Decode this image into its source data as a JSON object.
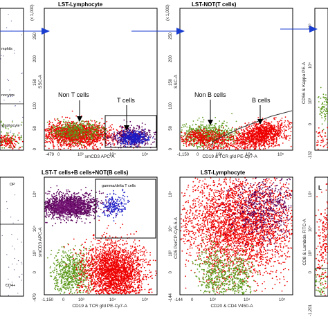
{
  "chart_data": [
    {
      "type": "scatter",
      "title": "",
      "ylabel": "",
      "xlabel": "",
      "annotations": [
        "mphils",
        "nocytes",
        "ymphocyte"
      ]
    },
    {
      "type": "scatter",
      "title": "LST-Lymphocyte",
      "ylabel": "SSC-A",
      "xlabel": "smCD3 APC-A",
      "y_ticks": [
        "(x 1,000)",
        "250",
        "200",
        "150",
        "100",
        "50",
        "0"
      ],
      "x_ticks": [
        "-479",
        "0",
        "10³",
        "10⁴",
        "10⁵"
      ],
      "annotations": [
        "Non T cells",
        "T cells"
      ],
      "series": [
        {
          "name": "Non T cells",
          "color": "#e60000"
        },
        {
          "name": "T cells",
          "color": "#2020d0"
        }
      ]
    },
    {
      "type": "scatter",
      "title": "LST-NOT(T cells)",
      "ylabel": "SSC-A",
      "xlabel": "CD19 & TCR gfd PE-Cy7-A",
      "y_ticks": [
        "(x 1,000)",
        "250",
        "200",
        "150",
        "100",
        "50",
        "0"
      ],
      "x_ticks": [
        "-1,150",
        "0",
        "10³",
        "10⁴",
        "10⁵"
      ],
      "annotations": [
        "Non B cells",
        "B cells"
      ],
      "series": [
        {
          "name": "Non B cells",
          "color": "#60a020"
        },
        {
          "name": "B cells",
          "color": "#e60000"
        }
      ]
    },
    {
      "type": "scatter",
      "title": "",
      "ylabel": "CD56 & Kappa PE-A",
      "xlabel": "",
      "y_ticks": [
        "10⁵",
        "10⁴",
        "10³",
        "0",
        "-132"
      ]
    },
    {
      "type": "scatter",
      "title": "",
      "ylabel": "",
      "xlabel": "",
      "annotations": [
        "DP",
        "CD4+"
      ]
    },
    {
      "type": "scatter",
      "title": "LST-T cells+B cells+NOT(B cells)",
      "ylabel": "smCD3 APC-A",
      "xlabel": "CD19 & TCR gfd PE-Cy7-A",
      "y_ticks": [
        "10⁵",
        "10⁴",
        "10³",
        "0",
        "-479"
      ],
      "x_ticks": [
        "-1,150",
        "0",
        "10³",
        "10⁴",
        "10⁵"
      ],
      "annotations": [
        "gamma/delta T cells"
      ]
    },
    {
      "type": "scatter",
      "title": "LST-Lymphocyte",
      "ylabel": "CD5 PerCP-Cy5-5-A",
      "xlabel": "CD20 & CD4 V450-A",
      "y_ticks": [
        "10⁵",
        "10⁴",
        "10³",
        "0",
        "-144"
      ],
      "x_ticks": [
        "-144",
        "0",
        "10³",
        "10⁴",
        "10⁵"
      ]
    },
    {
      "type": "scatter",
      "title": "L",
      "ylabel": "CD8 & Lambda FITC-A",
      "xlabel": "",
      "y_ticks": [
        "10⁵",
        "10⁴",
        "10³",
        "0",
        "-1,201"
      ]
    }
  ],
  "colors": {
    "red": "#ee0000",
    "green": "#5e9a1e",
    "blue": "#1c1cc8",
    "purple": "#5a005a",
    "arrow": "#1a3dd1"
  }
}
